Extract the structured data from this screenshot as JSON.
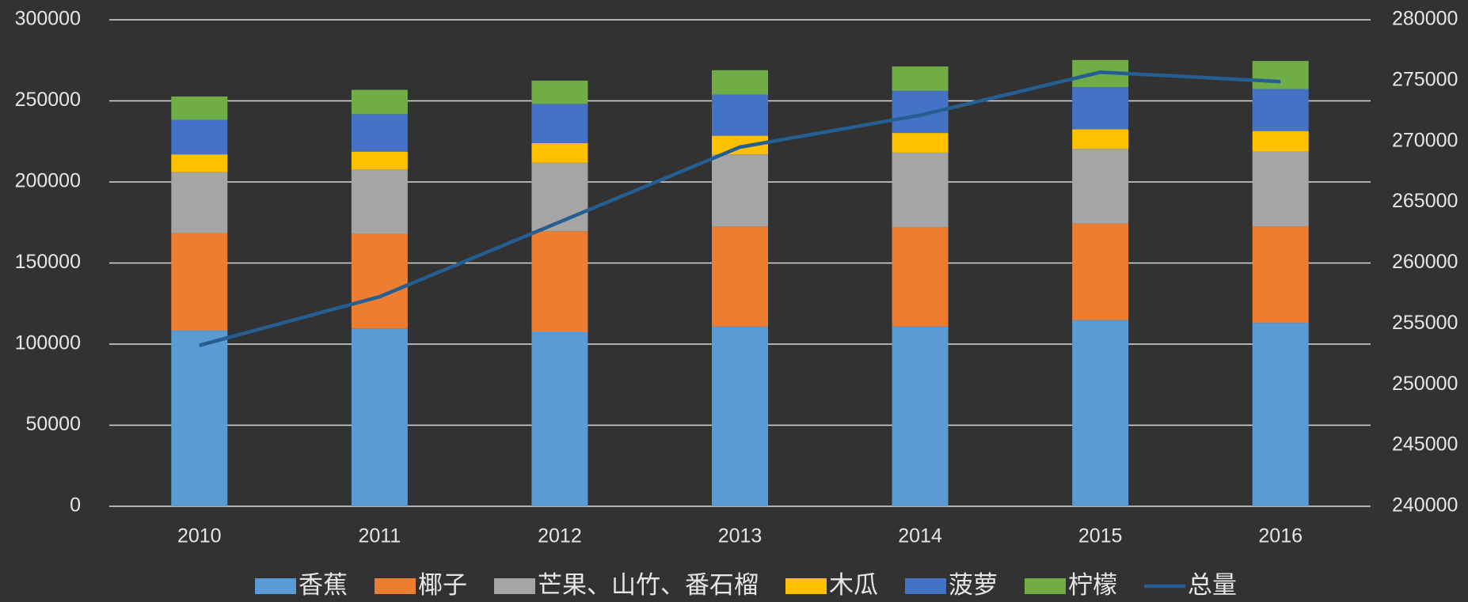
{
  "chart_data": {
    "type": "stacked-bar-line",
    "categories": [
      "2010",
      "2011",
      "2012",
      "2013",
      "2014",
      "2015",
      "2016"
    ],
    "series": [
      {
        "name": "香蕉",
        "color": "#5b9bd5",
        "values": [
          108500,
          109600,
          107300,
          110800,
          110800,
          114800,
          113100
        ]
      },
      {
        "name": "椰子",
        "color": "#ed7d31",
        "values": [
          60000,
          58400,
          62300,
          61700,
          61200,
          59500,
          59400
        ]
      },
      {
        "name": "芒果、山竹、番石榴",
        "color": "#a5a5a5",
        "values": [
          37500,
          39700,
          42200,
          44500,
          46100,
          46100,
          46200
        ]
      },
      {
        "name": "木瓜",
        "color": "#ffc000",
        "values": [
          11000,
          11000,
          12100,
          11500,
          12100,
          12100,
          12700
        ]
      },
      {
        "name": "菠萝",
        "color": "#4472c4",
        "values": [
          21300,
          23100,
          24200,
          25400,
          26000,
          26000,
          25900
        ]
      },
      {
        "name": "柠檬",
        "color": "#70ad47",
        "values": [
          14400,
          15000,
          14400,
          15000,
          15000,
          16700,
          17300
        ]
      },
      {
        "name": "总量",
        "color": "#255e91",
        "axis": "y2",
        "type": "line",
        "values": [
          253230,
          257230,
          263380,
          269530,
          272150,
          275690,
          274920
        ]
      }
    ],
    "ylim": [
      0,
      300000
    ],
    "yticks": [
      0,
      50000,
      100000,
      150000,
      200000,
      250000,
      300000
    ],
    "y2lim": [
      240000,
      280000
    ],
    "y2ticks": [
      240000,
      245000,
      250000,
      255000,
      260000,
      265000,
      270000,
      275000,
      280000
    ],
    "grid": true,
    "legend": "bottom"
  }
}
